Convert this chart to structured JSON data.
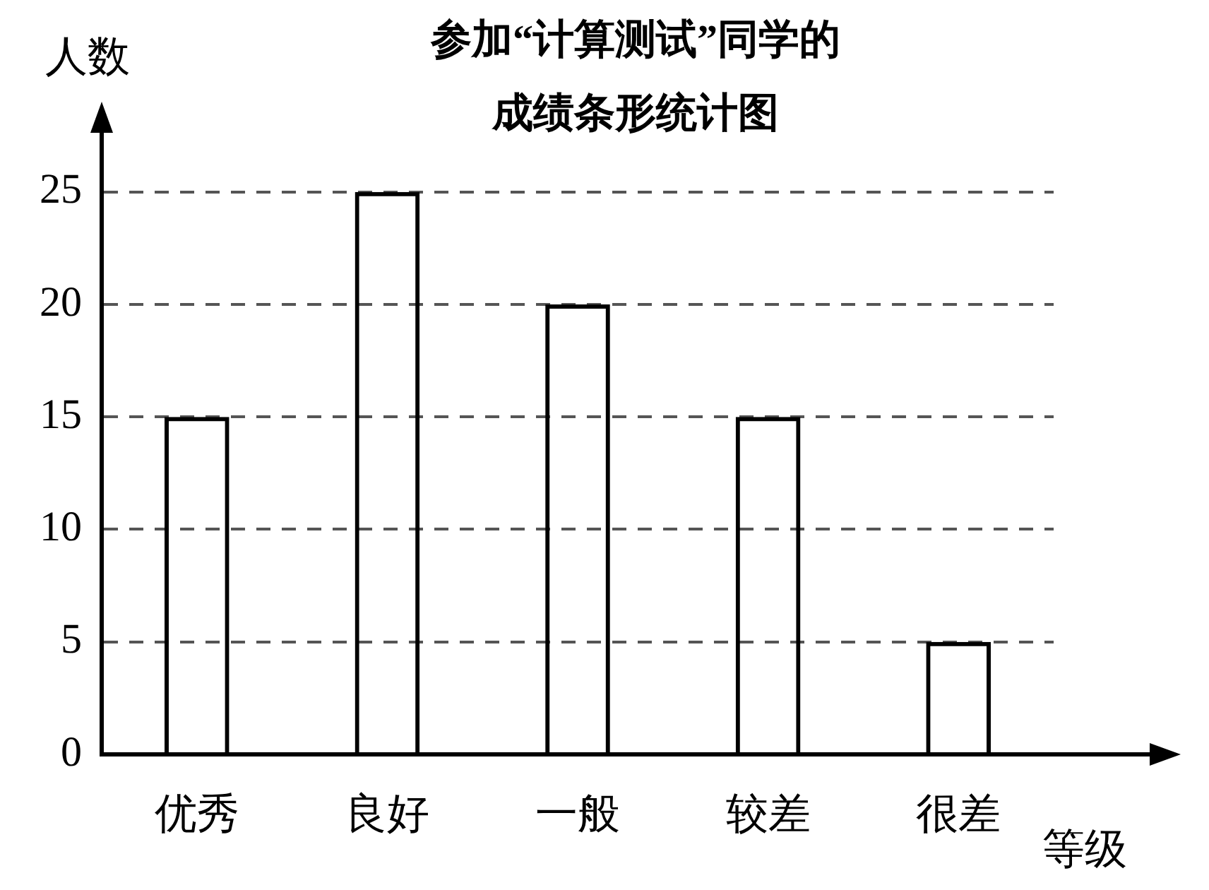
{
  "chart_data": {
    "type": "bar",
    "title": [
      "参加“计算测试”同学的",
      "成绩条形统计图"
    ],
    "xlabel": "等级",
    "ylabel": "人数",
    "categories": [
      "优秀",
      "良好",
      "一般",
      "较差",
      "很差"
    ],
    "values": [
      15,
      25,
      20,
      15,
      5
    ],
    "color": "#000000",
    "ylim": [
      0,
      27
    ],
    "yticks": [
      0,
      5,
      10,
      15,
      20,
      25
    ],
    "grid": "y",
    "legend": false
  }
}
